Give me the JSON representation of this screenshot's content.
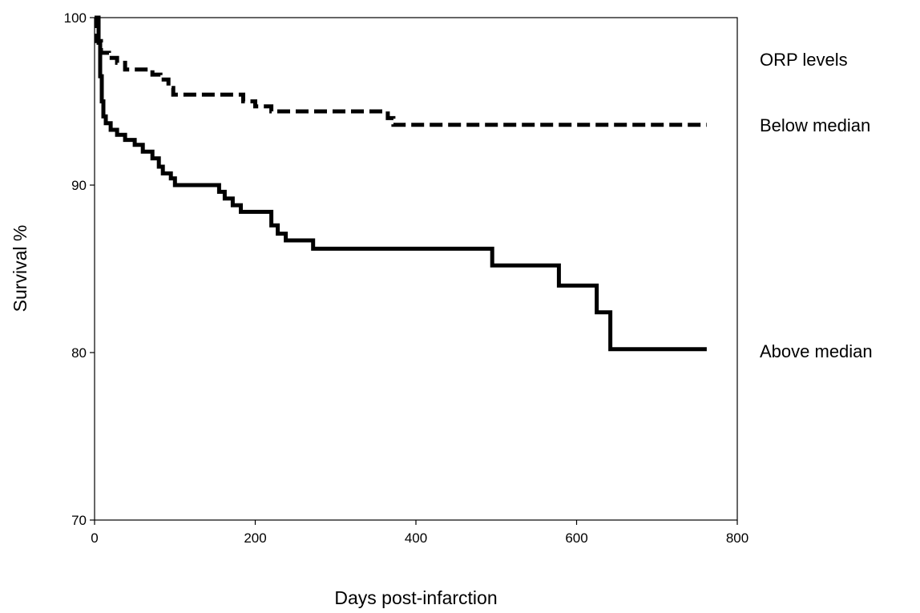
{
  "chart_data": {
    "type": "line",
    "title": "",
    "xlabel": "Days post-infarction",
    "ylabel": "Survival %",
    "xlim": [
      0,
      800
    ],
    "ylim": [
      70,
      100
    ],
    "xticks": [
      0,
      200,
      400,
      600,
      800
    ],
    "yticks": [
      70,
      80,
      90,
      100
    ],
    "grid": false,
    "legend": {
      "title": "ORP levels",
      "placement": "right"
    },
    "series": [
      {
        "name": "Below median",
        "style": "dashed",
        "color": "#000000",
        "x": [
          0,
          3,
          3,
          8,
          8,
          18,
          18,
          28,
          28,
          38,
          38,
          72,
          72,
          82,
          82,
          92,
          92,
          98,
          98,
          185,
          185,
          200,
          200,
          220,
          220,
          365,
          365,
          372,
          372,
          762
        ],
        "y": [
          100,
          100,
          98.6,
          98.6,
          97.9,
          97.9,
          97.6,
          97.6,
          97.3,
          97.3,
          96.9,
          96.9,
          96.6,
          96.6,
          96.3,
          96.3,
          95.8,
          95.8,
          95.4,
          95.4,
          95.0,
          95.0,
          94.7,
          94.7,
          94.4,
          94.4,
          94.0,
          94.0,
          93.6,
          93.6
        ]
      },
      {
        "name": "Above median",
        "style": "solid",
        "color": "#000000",
        "x": [
          0,
          5,
          5,
          7,
          7,
          9,
          9,
          11,
          11,
          14,
          14,
          20,
          20,
          28,
          28,
          38,
          38,
          50,
          50,
          60,
          60,
          72,
          72,
          80,
          80,
          85,
          85,
          95,
          95,
          100,
          100,
          155,
          155,
          162,
          162,
          172,
          172,
          182,
          182,
          220,
          220,
          228,
          228,
          238,
          238,
          272,
          272,
          495,
          495,
          578,
          578,
          625,
          625,
          642,
          642,
          762
        ],
        "y": [
          100,
          100,
          98.5,
          98.5,
          96.5,
          96.5,
          95.0,
          95.0,
          94.1,
          94.1,
          93.7,
          93.7,
          93.3,
          93.3,
          93.0,
          93.0,
          92.7,
          92.7,
          92.4,
          92.4,
          92.0,
          92.0,
          91.6,
          91.6,
          91.1,
          91.1,
          90.7,
          90.7,
          90.4,
          90.4,
          90.0,
          90.0,
          89.6,
          89.6,
          89.2,
          89.2,
          88.8,
          88.8,
          88.4,
          88.4,
          87.6,
          87.6,
          87.1,
          87.1,
          86.7,
          86.7,
          86.2,
          86.2,
          85.2,
          85.2,
          84.0,
          84.0,
          82.4,
          82.4,
          80.2,
          80.2
        ]
      }
    ]
  }
}
